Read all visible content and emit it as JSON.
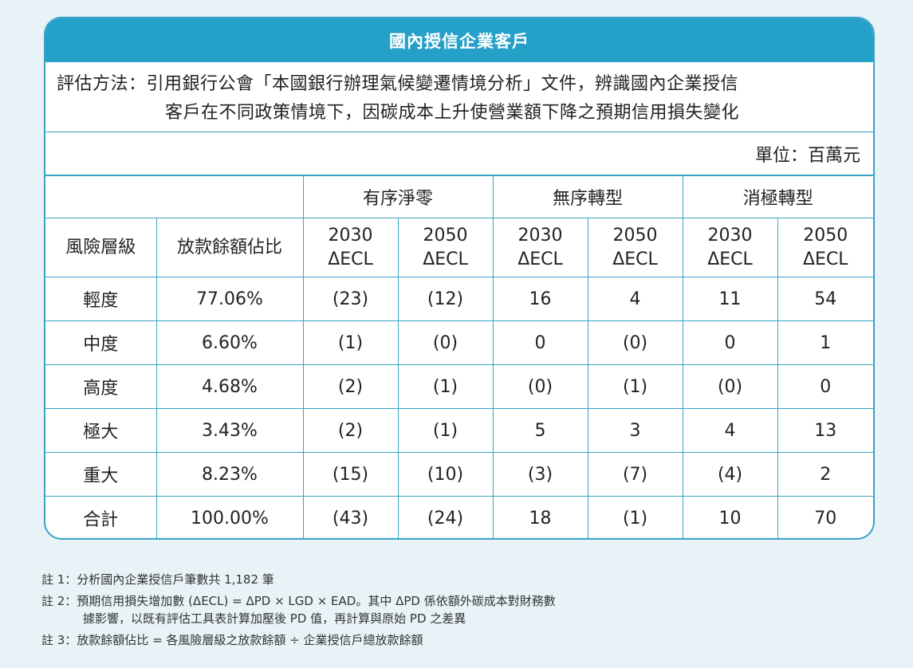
{
  "title": "國內授信企業客戶",
  "method": {
    "line1": "評估方法：引用銀行公會「本國銀行辦理氣候變遷情境分析」文件，辨識國內企業授信",
    "line2": "客戶在不同政策情境下，因碳成本上升使營業額下降之預期信用損失變化"
  },
  "unit": "單位：百萬元",
  "scenarios": [
    "有序淨零",
    "無序轉型",
    "消極轉型"
  ],
  "headers": {
    "risk": "風險層級",
    "ratio": "放款餘額佔比",
    "years": [
      "2030",
      "2050",
      "2030",
      "2050",
      "2030",
      "2050"
    ],
    "metric": "ΔECL"
  },
  "rows": [
    {
      "level": "輕度",
      "ratio": "77.06%",
      "values": [
        "(23)",
        "(12)",
        "16",
        "4",
        "11",
        "54"
      ]
    },
    {
      "level": "中度",
      "ratio": "6.60%",
      "values": [
        "(1)",
        "(0)",
        "0",
        "(0)",
        "0",
        "1"
      ]
    },
    {
      "level": "高度",
      "ratio": "4.68%",
      "values": [
        "(2)",
        "(1)",
        "(0)",
        "(1)",
        "(0)",
        "0"
      ]
    },
    {
      "level": "極大",
      "ratio": "3.43%",
      "values": [
        "(2)",
        "(1)",
        "5",
        "3",
        "4",
        "13"
      ]
    },
    {
      "level": "重大",
      "ratio": "8.23%",
      "values": [
        "(15)",
        "(10)",
        "(3)",
        "(7)",
        "(4)",
        "2"
      ]
    },
    {
      "level": "合計",
      "ratio": "100.00%",
      "values": [
        "(43)",
        "(24)",
        "18",
        "(1)",
        "10",
        "70"
      ]
    }
  ],
  "notes": {
    "n1": "註 1：分析國內企業授信戶筆數共 1,182 筆",
    "n2a": "註 2：預期信用損失增加數 (ΔECL) = ΔPD × LGD × EAD。其中 ΔPD 係依額外碳成本對財務數",
    "n2b": "據影響，以既有評估工具表計算加壓後 PD 值，再計算與原始 PD 之差異",
    "n3": "註 3：放款餘額佔比 = 各風險層級之放款餘額 ÷ 企業授信戶總放款餘額"
  }
}
